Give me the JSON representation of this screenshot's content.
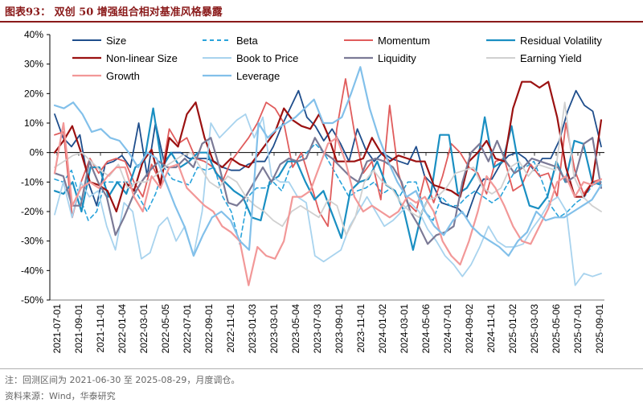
{
  "title": "图表93：  双创 50 增强组合相对基准风格暴露",
  "note": "注：回测区间为 2021-06-30 至 2025-08-29，月度调仓。",
  "source": "资料来源：Wind，华泰研究",
  "chart_data": {
    "type": "line",
    "ylim": [
      -50,
      40
    ],
    "yticks": [
      "40%",
      "30%",
      "20%",
      "10%",
      "0%",
      "-10%",
      "-20%",
      "-30%",
      "-40%",
      "-50%"
    ],
    "ytick_values": [
      40,
      30,
      20,
      10,
      0,
      -10,
      -20,
      -30,
      -40,
      -50
    ],
    "xtick_labels": [
      "2021-07-01",
      "2021-09-01",
      "2021-11-01",
      "2022-01-04",
      "2022-03-01",
      "2022-05-05",
      "2022-07-01",
      "2022-09-01",
      "2022-11-01",
      "2023-01-03",
      "2023-03-01",
      "2023-05-04",
      "2023-07-03",
      "2023-09-01",
      "2023-11-01",
      "2024-01-02",
      "2024-03-01",
      "2024-05-06",
      "2024-07-01",
      "2024-09-02",
      "2024-11-01",
      "2025-01-02",
      "2025-03-03",
      "2025-05-06",
      "2025-07-01",
      "2025-09-01"
    ],
    "legend_position": "top",
    "series": [
      {
        "name": "Size",
        "color": "#1f4e8c",
        "dash": "solid",
        "width": 1.8,
        "values": [
          13,
          5,
          2,
          6,
          -10,
          -18,
          -4,
          -3,
          -1,
          -5,
          10,
          -8,
          10,
          -3,
          0,
          0,
          -2,
          -2,
          -2,
          -3,
          -5,
          -6,
          -6,
          -4,
          -3,
          -3,
          2,
          9,
          15,
          21,
          12,
          9,
          4,
          8,
          3,
          -3,
          8,
          1,
          -3,
          0,
          -2,
          -3,
          -4,
          2,
          -8,
          -11,
          -17,
          -18,
          -19,
          -22,
          -14,
          -9,
          -9,
          -4,
          -1,
          0,
          -2,
          -6,
          -2,
          -2,
          4,
          14,
          21,
          16,
          14,
          2
        ]
      },
      {
        "name": "Beta",
        "color": "#29a3db",
        "dash": "5,4",
        "width": 1.6,
        "values": [
          -9,
          -10,
          -6,
          -15,
          -23,
          -20,
          -10,
          -10,
          -10,
          -10,
          -15,
          -20,
          -14,
          -5,
          -9,
          -10,
          -11,
          -5,
          -6,
          -5,
          -15,
          -20,
          -31,
          -15,
          -12,
          -12,
          -10,
          -13,
          -5,
          -2,
          0,
          3,
          0,
          -5,
          -10,
          -15,
          -13,
          -12,
          -10,
          -14,
          -12,
          -15,
          -10,
          -10,
          -20,
          -23,
          -15,
          -18,
          -18,
          -15,
          -13,
          -15,
          -17,
          -15,
          -10,
          -5,
          -5,
          -3,
          -10,
          -18,
          -22,
          -20,
          -17,
          -15,
          -11,
          -10
        ]
      },
      {
        "name": "Momentum",
        "color": "#e05c5c",
        "dash": "solid",
        "width": 1.8,
        "values": [
          6,
          7,
          -22,
          -10,
          -2,
          -7,
          -3,
          -2,
          -3,
          -10,
          -15,
          -4,
          -10,
          8,
          3,
          5,
          -2,
          -3,
          -5,
          -10,
          -3,
          1,
          5,
          10,
          17,
          15,
          10,
          -5,
          0,
          -10,
          -20,
          -25,
          8,
          25,
          7,
          -7,
          -3,
          -16,
          16,
          -7,
          -17,
          -20,
          -8,
          -17,
          -8,
          3,
          0,
          -5,
          -7,
          -14,
          -3,
          -2,
          -13,
          -11,
          -4,
          -8,
          -7,
          -15,
          10,
          -6,
          -14,
          -10,
          -9
        ]
      },
      {
        "name": "Residual Volatility",
        "color": "#1a8fc2",
        "dash": "solid",
        "width": 2.2,
        "values": [
          -13,
          -14,
          -10,
          -20,
          -5,
          -5,
          -15,
          -10,
          -14,
          -5,
          -3,
          15,
          -5,
          0,
          -5,
          -3,
          0,
          0,
          -7,
          -10,
          -13,
          -15,
          -22,
          -23,
          -10,
          -8,
          -3,
          -3,
          -10,
          -16,
          -13,
          -21,
          -29,
          -13,
          -10,
          -9,
          -3,
          -11,
          -13,
          -20,
          -33,
          -20,
          -14,
          6,
          6,
          -14,
          -12,
          -7,
          12,
          -5,
          -3,
          9,
          -8,
          -18,
          -19,
          -15,
          -3,
          -10,
          4,
          3,
          -10,
          -11
        ]
      },
      {
        "name": "Non-linear Size",
        "color": "#9b1111",
        "dash": "solid",
        "width": 2.2,
        "values": [
          0,
          4,
          9,
          0,
          -10,
          -11,
          -13,
          -20,
          -10,
          -13,
          -3,
          1,
          -11,
          5,
          2,
          13,
          17,
          5,
          -3,
          -5,
          -2,
          -4,
          -5,
          -1,
          3,
          7,
          15,
          11,
          9,
          8,
          13,
          6,
          -3,
          -3,
          -3,
          -2,
          5,
          0,
          -3,
          -1,
          -2,
          -3,
          -3,
          -11,
          -12,
          -13,
          -15,
          -3,
          0,
          4,
          -2,
          -3,
          15,
          24,
          24,
          22,
          24,
          12,
          -5,
          -15,
          -15,
          -10,
          11
        ]
      },
      {
        "name": "Book to Price",
        "color": "#a8d3ee",
        "dash": "solid",
        "width": 1.8,
        "values": [
          -21,
          -10,
          -22,
          -10,
          -15,
          -13,
          -25,
          -33,
          -17,
          -20,
          -36,
          -34,
          -25,
          -22,
          -30,
          -25,
          -35,
          -20,
          10,
          5,
          8,
          11,
          13,
          5,
          12,
          -8,
          -10,
          -10,
          -15,
          -17,
          -35,
          -37,
          -35,
          -33,
          -25,
          -20,
          -15,
          -20,
          -25,
          -23,
          -20,
          -17,
          -20,
          -26,
          -30,
          -35,
          -38,
          -42,
          -38,
          -32,
          -25,
          -30,
          -32,
          -32,
          -31,
          -26,
          -22,
          -17,
          -15,
          -20,
          -45,
          -41,
          -42,
          -41
        ]
      },
      {
        "name": "Liquidity",
        "color": "#7b7a96",
        "dash": "solid",
        "width": 2.2,
        "values": [
          -7,
          -8,
          -18,
          -18,
          -3,
          -10,
          -15,
          -28,
          -22,
          -15,
          -10,
          -6,
          -3,
          -5,
          -5,
          -2,
          -5,
          3,
          5,
          -5,
          -17,
          -18,
          -15,
          -10,
          -5,
          -10,
          -4,
          -2,
          -3,
          -2,
          5,
          0,
          -2,
          -5,
          -8,
          -10,
          -3,
          -2,
          -3,
          -5,
          -10,
          -20,
          -25,
          -31,
          -28,
          -27,
          -25,
          -10,
          0,
          3,
          -3,
          4,
          -3,
          -7,
          -5,
          -2,
          -3,
          -4,
          -5,
          -10,
          -8,
          3,
          5,
          -12
        ]
      },
      {
        "name": "Earning Yield",
        "color": "#d0d0d0",
        "dash": "solid",
        "width": 1.8,
        "values": [
          -5,
          -3,
          -1,
          0,
          -3,
          -6,
          -8,
          -4,
          -12,
          -10,
          -10,
          -8,
          -5,
          -3,
          -1,
          0,
          -5,
          -10,
          -12,
          -8,
          -10,
          -15,
          -18,
          -20,
          -23,
          -25,
          -20,
          -18,
          -20,
          -22,
          -16,
          -18,
          -28,
          -22,
          -10,
          -6,
          -10,
          -12,
          -17,
          -20,
          -22,
          -16,
          -15,
          -12,
          -7,
          -6,
          -5,
          -12,
          -14,
          -12,
          -5,
          -3,
          -8,
          -4,
          -5,
          -6,
          17,
          -8,
          -15,
          -18,
          -20
        ]
      },
      {
        "name": "Growth",
        "color": "#f29898",
        "dash": "solid",
        "width": 2.2,
        "values": [
          -7,
          10,
          -18,
          -12,
          -10,
          -12,
          -8,
          -5,
          -5,
          -15,
          -20,
          -8,
          -12,
          -5,
          -4,
          -12,
          -15,
          -18,
          -20,
          -25,
          -27,
          -30,
          -45,
          -32,
          -35,
          -36,
          -30,
          -15,
          -15,
          -13,
          -5,
          3,
          5,
          -3,
          -15,
          -20,
          -18,
          -20,
          -22,
          -20,
          -15,
          -17,
          -15,
          -20,
          -30,
          -35,
          -38,
          -30,
          -20,
          -8,
          -12,
          -18,
          -25,
          -30,
          -31,
          -25,
          -19,
          -10,
          -8,
          -15,
          -10,
          -11,
          -9
        ]
      },
      {
        "name": "Leverage",
        "color": "#82c0ea",
        "dash": "solid",
        "width": 2.2,
        "values": [
          16,
          15,
          17,
          13,
          7,
          8,
          5,
          4,
          0,
          -5,
          0,
          -2,
          -10,
          -18,
          -25,
          -35,
          -28,
          -22,
          -20,
          -23,
          -30,
          -33,
          10,
          5,
          8,
          10,
          12,
          15,
          18,
          10,
          10,
          12,
          20,
          29,
          15,
          5,
          -3,
          -10,
          -15,
          -13,
          -20,
          -25,
          -28,
          -23,
          -20,
          -25,
          -28,
          -30,
          -32,
          -35,
          -30,
          -27,
          -20,
          -23,
          -22,
          -22,
          -20,
          -18,
          -16,
          -11
        ]
      }
    ]
  }
}
